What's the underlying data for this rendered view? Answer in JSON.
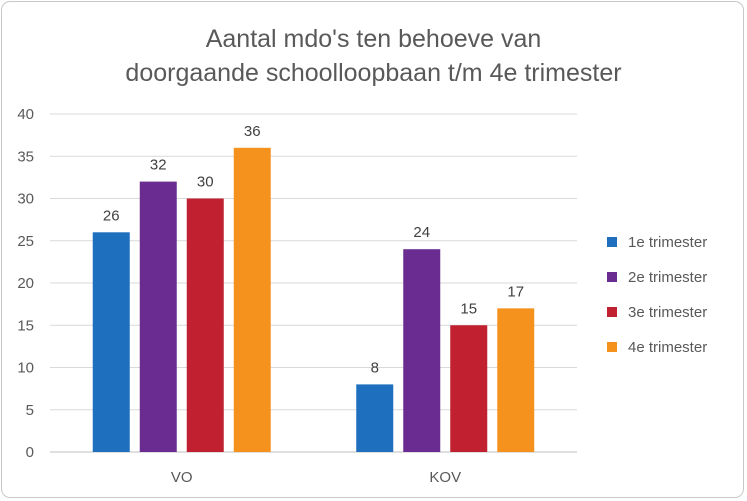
{
  "chart_data": {
    "type": "bar",
    "title_lines": [
      "Aantal mdo's ten behoeve van",
      "doorgaande schoolloopbaan t/m 4e trimester"
    ],
    "categories": [
      "VO",
      "KOV"
    ],
    "series": [
      {
        "name": "1e trimester",
        "color": "#1f6fbf",
        "values": [
          26,
          8
        ]
      },
      {
        "name": "2e trimester",
        "color": "#6a2c91",
        "values": [
          32,
          24
        ]
      },
      {
        "name": "3e trimester",
        "color": "#c0202f",
        "values": [
          30,
          15
        ]
      },
      {
        "name": "4e trimester",
        "color": "#f5921e",
        "values": [
          36,
          17
        ]
      }
    ],
    "ylim": [
      0,
      40
    ],
    "yticks": [
      0,
      5,
      10,
      15,
      20,
      25,
      30,
      35,
      40
    ],
    "grid": true,
    "legend_position": "right",
    "data_labels": true
  }
}
